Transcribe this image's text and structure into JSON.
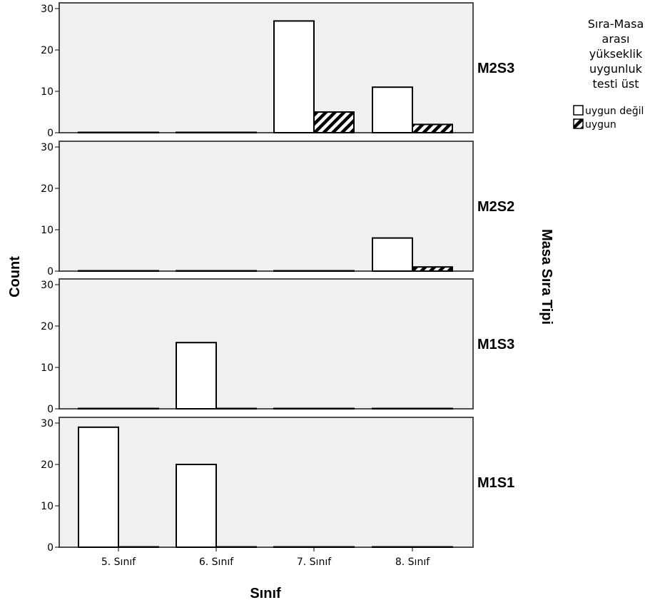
{
  "chart_data": {
    "type": "bar",
    "xlabel": "Sınıf",
    "ylabel": "Count",
    "facet_label": "Masa Sıra Tipi",
    "categories": [
      "5. Sınıf",
      "6. Sınıf",
      "7. Sınıf",
      "8. Sınıf"
    ],
    "ylim": [
      0,
      30
    ],
    "yticks": [
      0,
      10,
      20,
      30
    ],
    "legend": {
      "title_lines": [
        "Sıra-Masa",
        "arası",
        "yükseklik",
        "uygunluk",
        "testi üst"
      ],
      "placement": "top-right"
    },
    "series": [
      {
        "name": "uygun değil",
        "fill": "#ffffff",
        "pattern": "none"
      },
      {
        "name": "uygun",
        "fill": "#ffffff",
        "pattern": "diagonal-hatch"
      }
    ],
    "panels": [
      {
        "label": "M2S3",
        "values": [
          [
            0,
            0
          ],
          [
            0,
            0
          ],
          [
            27,
            5
          ],
          [
            11,
            2
          ]
        ]
      },
      {
        "label": "M2S2",
        "values": [
          [
            0,
            0
          ],
          [
            0,
            0
          ],
          [
            0,
            0
          ],
          [
            8,
            1
          ]
        ]
      },
      {
        "label": "M1S3",
        "values": [
          [
            0,
            0
          ],
          [
            16,
            0
          ],
          [
            0,
            0
          ],
          [
            0,
            0
          ]
        ]
      },
      {
        "label": "M1S1",
        "values": [
          [
            29,
            0
          ],
          [
            20,
            0
          ],
          [
            0,
            0
          ],
          [
            0,
            0
          ]
        ]
      }
    ]
  }
}
